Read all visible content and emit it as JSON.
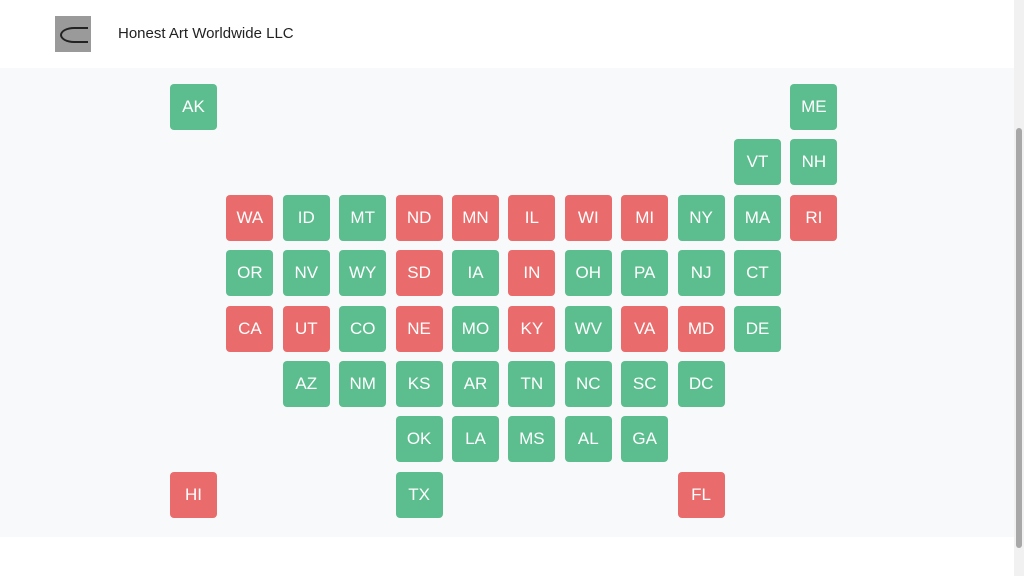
{
  "header": {
    "title": "Honest Art Worldwide LLC"
  },
  "map": {
    "rows": [
      [
        {
          "label": "AK",
          "color": "#5cbe8f"
        },
        null,
        null,
        null,
        null,
        null,
        null,
        null,
        null,
        null,
        null,
        {
          "label": "ME",
          "color": "#5cbe8f"
        }
      ],
      [
        null,
        null,
        null,
        null,
        null,
        null,
        null,
        null,
        null,
        null,
        {
          "label": "VT",
          "color": "#5cbe8f"
        },
        {
          "label": "NH",
          "color": "#5cbe8f"
        }
      ],
      [
        null,
        {
          "label": "WA",
          "color": "#e96b6b"
        },
        {
          "label": "ID",
          "color": "#5cbe8f"
        },
        {
          "label": "MT",
          "color": "#5cbe8f"
        },
        {
          "label": "ND",
          "color": "#e96b6b"
        },
        {
          "label": "MN",
          "color": "#e96b6b"
        },
        {
          "label": "IL",
          "color": "#e96b6b"
        },
        {
          "label": "WI",
          "color": "#e96b6b"
        },
        {
          "label": "MI",
          "color": "#e96b6b"
        },
        {
          "label": "NY",
          "color": "#5cbe8f"
        },
        {
          "label": "MA",
          "color": "#5cbe8f"
        },
        {
          "label": "RI",
          "color": "#e96b6b"
        }
      ],
      [
        null,
        {
          "label": "OR",
          "color": "#5cbe8f"
        },
        {
          "label": "NV",
          "color": "#5cbe8f"
        },
        {
          "label": "WY",
          "color": "#5cbe8f"
        },
        {
          "label": "SD",
          "color": "#e96b6b"
        },
        {
          "label": "IA",
          "color": "#5cbe8f"
        },
        {
          "label": "IN",
          "color": "#e96b6b"
        },
        {
          "label": "OH",
          "color": "#5cbe8f"
        },
        {
          "label": "PA",
          "color": "#5cbe8f"
        },
        {
          "label": "NJ",
          "color": "#5cbe8f"
        },
        {
          "label": "CT",
          "color": "#5cbe8f"
        },
        null
      ],
      [
        null,
        {
          "label": "CA",
          "color": "#e96b6b"
        },
        {
          "label": "UT",
          "color": "#e96b6b"
        },
        {
          "label": "CO",
          "color": "#5cbe8f"
        },
        {
          "label": "NE",
          "color": "#e96b6b"
        },
        {
          "label": "MO",
          "color": "#5cbe8f"
        },
        {
          "label": "KY",
          "color": "#e96b6b"
        },
        {
          "label": "WV",
          "color": "#5cbe8f"
        },
        {
          "label": "VA",
          "color": "#e96b6b"
        },
        {
          "label": "MD",
          "color": "#e96b6b"
        },
        {
          "label": "DE",
          "color": "#5cbe8f"
        },
        null
      ],
      [
        null,
        null,
        {
          "label": "AZ",
          "color": "#5cbe8f"
        },
        {
          "label": "NM",
          "color": "#5cbe8f"
        },
        {
          "label": "KS",
          "color": "#5cbe8f"
        },
        {
          "label": "AR",
          "color": "#5cbe8f"
        },
        {
          "label": "TN",
          "color": "#5cbe8f"
        },
        {
          "label": "NC",
          "color": "#5cbe8f"
        },
        {
          "label": "SC",
          "color": "#5cbe8f"
        },
        {
          "label": "DC",
          "color": "#5cbe8f"
        },
        null,
        null
      ],
      [
        null,
        null,
        null,
        null,
        {
          "label": "OK",
          "color": "#5cbe8f"
        },
        {
          "label": "LA",
          "color": "#5cbe8f"
        },
        {
          "label": "MS",
          "color": "#5cbe8f"
        },
        {
          "label": "AL",
          "color": "#5cbe8f"
        },
        {
          "label": "GA",
          "color": "#5cbe8f"
        },
        null,
        null,
        null
      ],
      [
        {
          "label": "HI",
          "color": "#e96b6b"
        },
        null,
        null,
        null,
        {
          "label": "TX",
          "color": "#5cbe8f"
        },
        null,
        null,
        null,
        null,
        {
          "label": "FL",
          "color": "#e96b6b"
        },
        null,
        null
      ]
    ]
  }
}
